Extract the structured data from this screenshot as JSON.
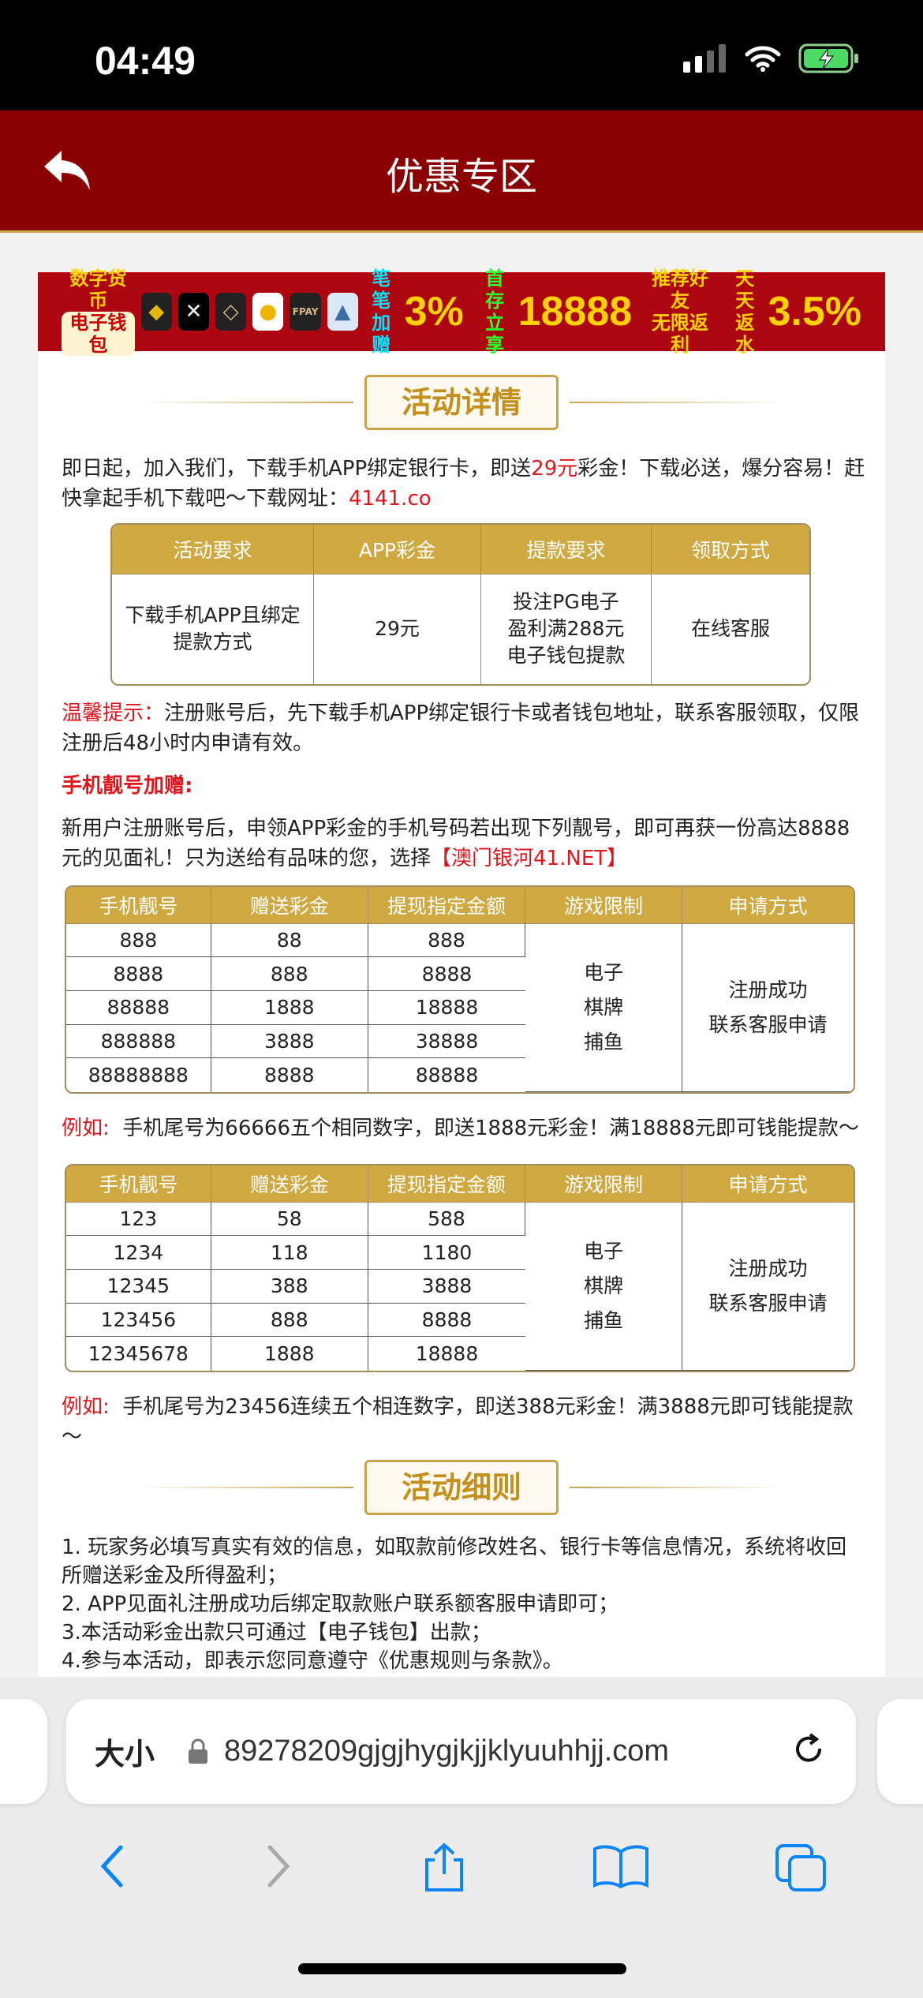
{
  "status": {
    "time": "04:49"
  },
  "header": {
    "title": "优惠专区"
  },
  "banner": {
    "l1": "数字货币",
    "l2": "电子钱包",
    "p1a": "笔笔",
    "p1b": "加赠",
    "p1v": "3%",
    "p2a": "首存",
    "p2b": "立享",
    "p2v": "18888",
    "p3a": "推荐好友",
    "p3b": "无限返利",
    "p4a": "天天",
    "p4b": "返水",
    "p4v": "3.5%",
    "fpay": "FPAY"
  },
  "section1": {
    "title": "活动详情",
    "intro_a": "即日起，加入我们，下载手机APP绑定银行卡，即送",
    "intro_red": "29元",
    "intro_b": "彩金！下载必送，爆分容易！赶快拿起手机下载吧～下载网址：",
    "intro_url": "4141.co"
  },
  "table1": {
    "headers": [
      "活动要求",
      "APP彩金",
      "提款要求",
      "领取方式"
    ],
    "row": [
      "下载手机APP且绑定提款方式",
      "29元",
      "投注PG电子\n盈利满288元\n电子钱包提款",
      "在线客服"
    ]
  },
  "tip": {
    "label": "温馨提示：",
    "text": "注册账号后，先下载手机APP绑定银行卡或者钱包地址，联系客服领取，仅限注册后48小时内申请有效。"
  },
  "bonus": {
    "title": "手机靓号加赠:",
    "text_a": "新用户注册账号后，申领APP彩金的手机号码若出现下列靓号，即可再获一份高达8888元的见面礼！只为送给有品味的您，选择",
    "text_red": "【澳门银河41.NET】"
  },
  "table2": {
    "headers": [
      "手机靓号",
      "赠送彩金",
      "提现指定金额",
      "游戏限制",
      "申请方式"
    ],
    "rows": [
      [
        "888",
        "88",
        "888"
      ],
      [
        "8888",
        "888",
        "8888"
      ],
      [
        "88888",
        "1888",
        "18888"
      ],
      [
        "888888",
        "3888",
        "38888"
      ],
      [
        "88888888",
        "8888",
        "88888"
      ]
    ],
    "games": "电子\n棋牌\n捕鱼",
    "apply": "注册成功\n联系客服申请"
  },
  "example1": {
    "label": "例如:",
    "text": "手机尾号为66666五个相同数字，即送1888元彩金！满18888元即可钱能提款～"
  },
  "table3": {
    "headers": [
      "手机靓号",
      "赠送彩金",
      "提现指定金额",
      "游戏限制",
      "申请方式"
    ],
    "rows": [
      [
        "123",
        "58",
        "588"
      ],
      [
        "1234",
        "118",
        "1180"
      ],
      [
        "12345",
        "388",
        "3888"
      ],
      [
        "123456",
        "888",
        "8888"
      ],
      [
        "12345678",
        "1888",
        "18888"
      ]
    ],
    "games": "电子\n棋牌\n捕鱼",
    "apply": "注册成功\n联系客服申请"
  },
  "example2": {
    "label": "例如:",
    "text": "手机尾号为23456连续五个相连数字，即送388元彩金！满3888元即可钱能提款～"
  },
  "section2": {
    "title": "活动细则",
    "rules": [
      "1. 玩家务必填写真实有效的信息，如取款前修改姓名、银行卡等信息情况，系统将收回所赠送彩金及所得盈利；",
      "2. APP见面礼注册成功后绑定取款账户联系额客服申请即可；",
      "3.本活动彩金出款只可通过【电子钱包】出款；",
      "4.参与本活动，即表示您同意遵守《优惠规则与条款》。"
    ]
  },
  "safari": {
    "text_size": "大小",
    "url": "89278209gjgjhygjkjjklyuuhhjj.com"
  },
  "colors": {
    "header": "#8b0000",
    "gold": "#cfa83f",
    "red": "#e4141b",
    "link": "#0a84ff"
  }
}
